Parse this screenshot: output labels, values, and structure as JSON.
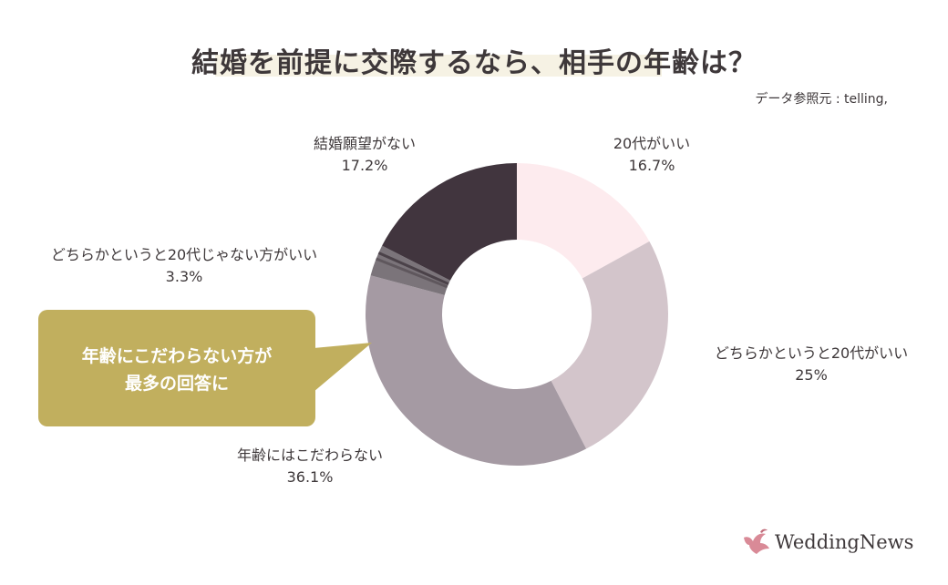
{
  "header": {
    "title": "結婚を前提に交際するなら、相手の年齢は？",
    "source": "データ参照元 : telling,"
  },
  "callout": {
    "line1": "年齢にこだわらない方が",
    "line2": "最多の回答に"
  },
  "logo": {
    "text": "WeddingNews",
    "icon": "dove-icon"
  },
  "chart_data": {
    "type": "pie",
    "donut": true,
    "categories": [
      "20代がいい",
      "どちらかというと20代がいい",
      "年齢にはこだわらない",
      "どちらかというと20代じゃない方がいい",
      "結婚願望がない"
    ],
    "values": [
      16.7,
      25,
      36.1,
      3.3,
      17.2
    ],
    "labels": [
      "16.7%",
      "25%",
      "36.1%",
      "3.3%",
      "17.2%"
    ],
    "colors": [
      "#fdebee",
      "#d3c5cb",
      "#a59aa3",
      "#7b747a",
      "#41353e"
    ],
    "legend": "none"
  }
}
